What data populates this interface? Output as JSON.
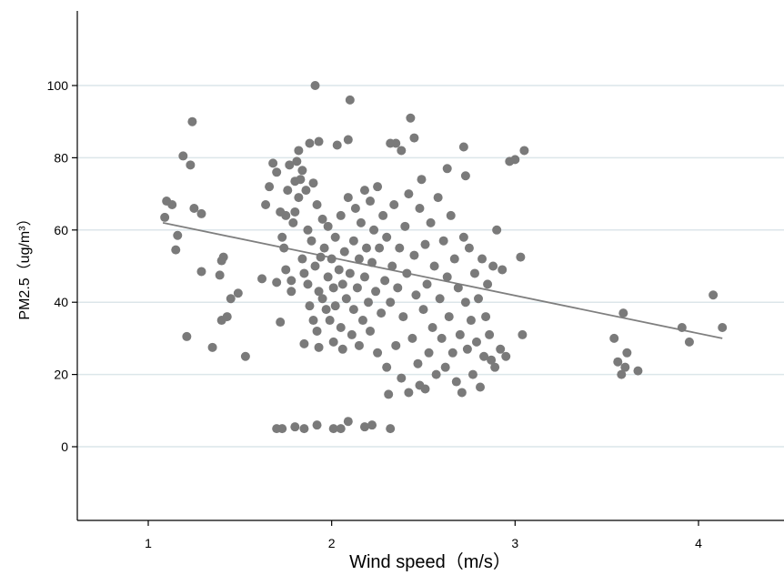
{
  "chart_data": {
    "type": "scatter",
    "title": "",
    "xlabel": "Wind speed（m/s）",
    "ylabel": "PM2.5（ug/m³）",
    "xlim": [
      0.6,
      4.45
    ],
    "ylim": [
      -20,
      120
    ],
    "xticks": [
      1,
      2,
      3,
      4
    ],
    "yticks": [
      0,
      20,
      40,
      60,
      80,
      100
    ],
    "grid": "horizontal",
    "colors": {
      "points": "#7a7a7a",
      "fit_line": "#7f7f7f",
      "grid": "#dce6ea",
      "axis": "#000000"
    },
    "fit_line": {
      "x": [
        1.08,
        4.13
      ],
      "y": [
        62,
        30
      ]
    },
    "series": [
      {
        "points": [
          [
            1.09,
            63.5
          ],
          [
            1.1,
            68
          ],
          [
            1.13,
            67
          ],
          [
            1.16,
            58.5
          ],
          [
            1.15,
            54.5
          ],
          [
            1.19,
            80.5
          ],
          [
            1.21,
            30.5
          ],
          [
            1.23,
            78
          ],
          [
            1.24,
            90
          ],
          [
            1.25,
            66
          ],
          [
            1.29,
            64.5
          ],
          [
            1.29,
            48.5
          ],
          [
            1.35,
            27.5
          ],
          [
            1.39,
            47.5
          ],
          [
            1.4,
            51.5
          ],
          [
            1.41,
            52.5
          ],
          [
            1.4,
            35
          ],
          [
            1.43,
            36
          ],
          [
            1.45,
            41
          ],
          [
            1.49,
            42.5
          ],
          [
            1.53,
            25
          ],
          [
            1.62,
            46.5
          ],
          [
            1.64,
            67
          ],
          [
            1.66,
            72
          ],
          [
            1.68,
            78.5
          ],
          [
            1.7,
            76
          ],
          [
            1.7,
            45.5
          ],
          [
            1.72,
            65
          ],
          [
            1.72,
            34.5
          ],
          [
            1.73,
            58
          ],
          [
            1.74,
            55
          ],
          [
            1.75,
            49
          ],
          [
            1.75,
            64
          ],
          [
            1.76,
            71
          ],
          [
            1.77,
            78
          ],
          [
            1.78,
            43
          ],
          [
            1.78,
            46
          ],
          [
            1.79,
            62
          ],
          [
            1.8,
            65
          ],
          [
            1.8,
            73.5
          ],
          [
            1.81,
            79
          ],
          [
            1.82,
            69
          ],
          [
            1.82,
            82
          ],
          [
            1.83,
            74
          ],
          [
            1.84,
            76.5
          ],
          [
            1.84,
            52
          ],
          [
            1.85,
            48
          ],
          [
            1.85,
            28.5
          ],
          [
            1.86,
            71
          ],
          [
            1.87,
            45
          ],
          [
            1.87,
            60
          ],
          [
            1.88,
            84
          ],
          [
            1.88,
            39
          ],
          [
            1.89,
            57
          ],
          [
            1.9,
            35
          ],
          [
            1.9,
            73
          ],
          [
            1.91,
            100
          ],
          [
            1.91,
            50
          ],
          [
            1.92,
            32
          ],
          [
            1.92,
            67
          ],
          [
            1.93,
            43
          ],
          [
            1.93,
            84.5
          ],
          [
            1.93,
            27.5
          ],
          [
            1.94,
            52.5
          ],
          [
            1.95,
            63
          ],
          [
            1.95,
            41
          ],
          [
            1.96,
            55
          ],
          [
            1.97,
            38
          ],
          [
            1.98,
            47
          ],
          [
            1.98,
            61
          ],
          [
            1.99,
            35
          ],
          [
            2.0,
            52
          ],
          [
            2.01,
            44
          ],
          [
            2.01,
            29
          ],
          [
            2.02,
            58
          ],
          [
            2.02,
            39
          ],
          [
            2.03,
            83.5
          ],
          [
            2.04,
            49
          ],
          [
            2.05,
            33
          ],
          [
            2.05,
            64
          ],
          [
            2.06,
            45
          ],
          [
            2.06,
            27
          ],
          [
            2.07,
            54
          ],
          [
            2.08,
            41
          ],
          [
            2.09,
            69
          ],
          [
            2.09,
            85
          ],
          [
            2.1,
            96
          ],
          [
            2.1,
            48
          ],
          [
            2.11,
            31
          ],
          [
            2.12,
            57
          ],
          [
            2.12,
            38
          ],
          [
            2.13,
            66
          ],
          [
            2.14,
            44
          ],
          [
            2.15,
            52
          ],
          [
            2.15,
            28
          ],
          [
            2.16,
            62
          ],
          [
            2.17,
            35
          ],
          [
            2.18,
            71
          ],
          [
            2.18,
            47
          ],
          [
            2.19,
            55
          ],
          [
            2.2,
            40
          ],
          [
            2.21,
            68
          ],
          [
            2.21,
            32
          ],
          [
            2.22,
            51
          ],
          [
            2.23,
            60
          ],
          [
            2.24,
            43
          ],
          [
            2.25,
            26
          ],
          [
            2.25,
            72
          ],
          [
            2.26,
            55
          ],
          [
            2.27,
            37
          ],
          [
            2.28,
            64
          ],
          [
            2.29,
            46
          ],
          [
            2.3,
            22
          ],
          [
            2.3,
            58
          ],
          [
            2.31,
            14.5
          ],
          [
            2.32,
            84
          ],
          [
            2.32,
            40
          ],
          [
            2.33,
            50
          ],
          [
            2.34,
            67
          ],
          [
            2.35,
            28
          ],
          [
            2.35,
            84
          ],
          [
            2.36,
            44
          ],
          [
            2.37,
            55
          ],
          [
            2.38,
            19
          ],
          [
            2.38,
            82
          ],
          [
            2.39,
            36
          ],
          [
            2.4,
            61
          ],
          [
            2.41,
            48
          ],
          [
            2.42,
            70
          ],
          [
            2.42,
            15
          ],
          [
            2.43,
            91
          ],
          [
            2.44,
            30
          ],
          [
            2.45,
            85.5
          ],
          [
            2.45,
            53
          ],
          [
            2.46,
            42
          ],
          [
            2.47,
            23
          ],
          [
            2.48,
            66
          ],
          [
            2.48,
            17
          ],
          [
            2.49,
            74
          ],
          [
            2.5,
            38
          ],
          [
            2.51,
            56
          ],
          [
            2.51,
            16
          ],
          [
            2.52,
            45
          ],
          [
            2.53,
            26
          ],
          [
            2.54,
            62
          ],
          [
            2.55,
            33
          ],
          [
            2.56,
            50
          ],
          [
            2.57,
            20
          ],
          [
            2.58,
            69
          ],
          [
            2.59,
            41
          ],
          [
            2.6,
            30
          ],
          [
            2.61,
            57
          ],
          [
            2.62,
            22
          ],
          [
            2.63,
            77
          ],
          [
            2.63,
            47
          ],
          [
            2.64,
            36
          ],
          [
            2.65,
            64
          ],
          [
            2.66,
            26
          ],
          [
            2.67,
            52
          ],
          [
            2.68,
            18
          ],
          [
            2.69,
            44
          ],
          [
            2.7,
            31
          ],
          [
            2.71,
            15
          ],
          [
            2.72,
            58
          ],
          [
            2.72,
            83
          ],
          [
            2.73,
            75
          ],
          [
            2.73,
            40
          ],
          [
            2.74,
            27
          ],
          [
            2.75,
            55
          ],
          [
            2.76,
            35
          ],
          [
            2.77,
            20
          ],
          [
            2.78,
            48
          ],
          [
            2.79,
            29
          ],
          [
            2.8,
            41
          ],
          [
            2.81,
            16.5
          ],
          [
            2.82,
            52
          ],
          [
            2.83,
            25
          ],
          [
            2.84,
            36
          ],
          [
            2.85,
            45
          ],
          [
            2.86,
            31
          ],
          [
            2.87,
            24
          ],
          [
            2.88,
            50
          ],
          [
            2.89,
            22
          ],
          [
            2.9,
            60
          ],
          [
            2.92,
            27
          ],
          [
            2.93,
            49
          ],
          [
            2.95,
            25
          ],
          [
            2.97,
            79
          ],
          [
            3.0,
            79.5
          ],
          [
            3.03,
            52.5
          ],
          [
            3.04,
            31
          ],
          [
            3.05,
            82
          ],
          [
            1.7,
            5
          ],
          [
            1.73,
            5
          ],
          [
            1.8,
            5.5
          ],
          [
            1.85,
            5
          ],
          [
            1.92,
            6
          ],
          [
            2.01,
            5
          ],
          [
            2.05,
            5
          ],
          [
            2.09,
            7
          ],
          [
            2.18,
            5.5
          ],
          [
            2.22,
            6
          ],
          [
            2.32,
            5
          ],
          [
            3.54,
            30
          ],
          [
            3.56,
            23.5
          ],
          [
            3.58,
            20
          ],
          [
            3.59,
            37
          ],
          [
            3.6,
            22
          ],
          [
            3.61,
            26
          ],
          [
            3.67,
            21
          ],
          [
            3.91,
            33
          ],
          [
            3.95,
            29
          ],
          [
            4.08,
            42
          ],
          [
            4.13,
            33
          ]
        ]
      }
    ]
  }
}
